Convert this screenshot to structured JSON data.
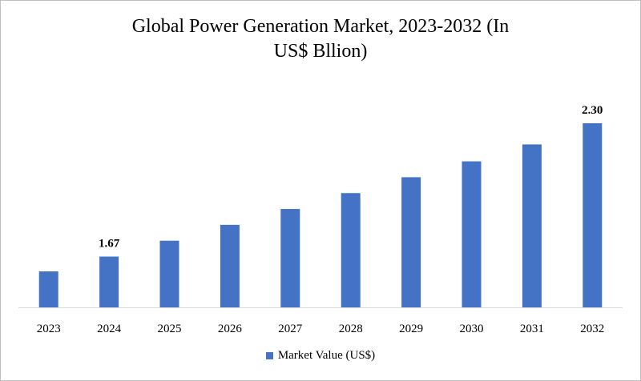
{
  "chart_data": {
    "type": "bar",
    "title_lines": [
      "Global Power Generation Market, 2023-2032 (In",
      "US$ Bllion)"
    ],
    "categories": [
      "2023",
      "2024",
      "2025",
      "2026",
      "2027",
      "2028",
      "2029",
      "2030",
      "2031",
      "2032"
    ],
    "series": [
      {
        "name": "Market Value (US$)",
        "color": "#4472c4",
        "values": [
          1.6,
          1.67,
          1.745,
          1.82,
          1.895,
          1.97,
          2.045,
          2.12,
          2.2,
          2.3
        ]
      }
    ],
    "data_labels": [
      {
        "category": "2024",
        "text": "1.67"
      },
      {
        "category": "2032",
        "text": "2.30"
      }
    ],
    "ylim": [
      1.43,
      2.3
    ],
    "grid": false,
    "legend_position": "bottom-center"
  }
}
